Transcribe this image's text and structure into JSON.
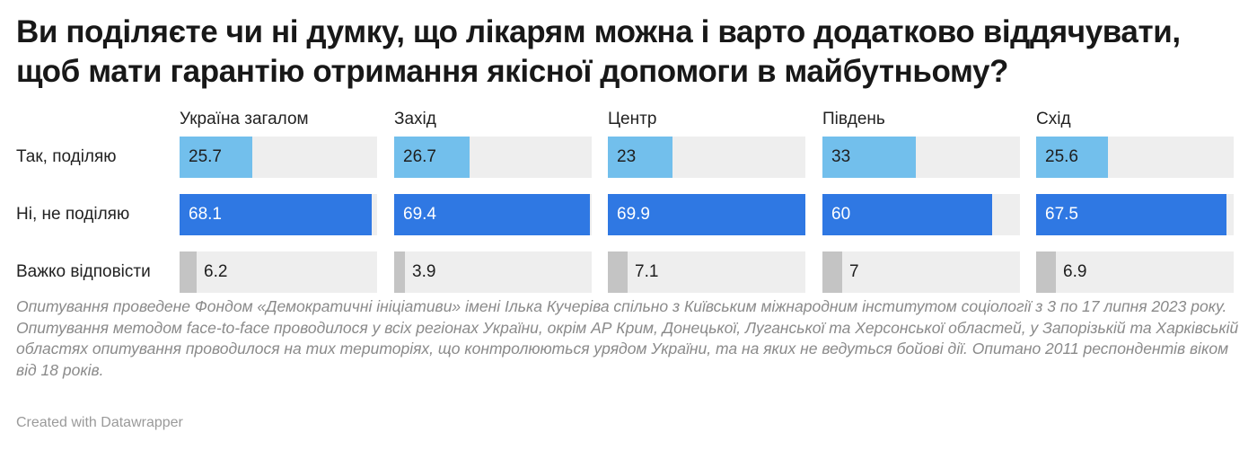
{
  "title": "Ви поділяєте чи ні думку, що лікарям можна і варто додатково віддячувати, щоб мати гарантію отримання якісної допомоги в майбутньому?",
  "note": "Опитування проведене Фондом «Демократичні ініціативи» імені Ілька Кучеріва спільно з Київським міжнародним інститутом соціології з 3 по 17 липня 2023 року. Опитування методом face-to-face проводилося у всіх регіонах України, окрім АР Крим, Донецької, Луганської та Херсонської областей, у Запорізькій та Харківській областях опитування проводилося на тих територіях, що контролюються урядом України, та на яких не ведуться бойові дії. Опитано 2011 респондентів віком від 18 років.",
  "credit": "Created with Datawrapper",
  "colors": {
    "agree": "#72bfec",
    "disagree": "#2f78e3",
    "hard_to_say": "#c4c4c4",
    "background_bar": "#eeeeee"
  },
  "chart_data": {
    "type": "bar",
    "orientation": "horizontal",
    "layout": "small-multiples",
    "regions": [
      "Україна загалом",
      "Захід",
      "Центр",
      "Південь",
      "Схід"
    ],
    "categories": [
      "Так, поділяю",
      "Ні, не поділяю",
      "Важко відповісти"
    ],
    "series": [
      {
        "name": "Україна загалом",
        "values": [
          25.7,
          68.1,
          6.2
        ]
      },
      {
        "name": "Захід",
        "values": [
          26.7,
          69.4,
          3.9
        ]
      },
      {
        "name": "Центр",
        "values": [
          23,
          69.9,
          7.1
        ]
      },
      {
        "name": "Південь",
        "values": [
          33,
          60,
          7
        ]
      },
      {
        "name": "Схід",
        "values": [
          25.6,
          67.5,
          6.9
        ]
      }
    ],
    "xlim": [
      0,
      70
    ],
    "grid": false,
    "legend": "none"
  }
}
